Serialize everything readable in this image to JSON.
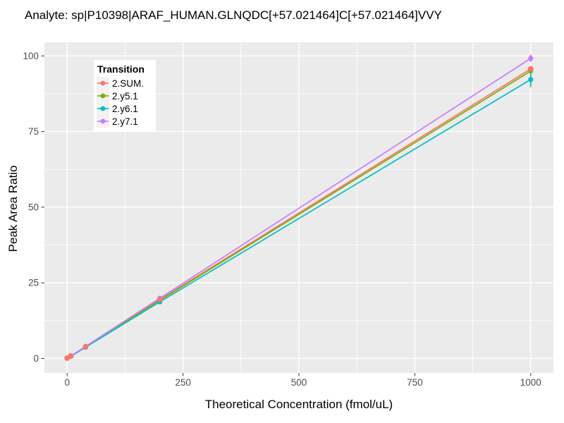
{
  "title": "Analyte: sp|P10398|ARAF_HUMAN.GLNQDC[+57.021464]C[+57.021464]VVY",
  "legend": {
    "title": "Transition",
    "items": [
      {
        "label": "2.SUM.",
        "color": "#F8766D"
      },
      {
        "label": "2.y5.1",
        "color": "#7CAE00"
      },
      {
        "label": "2.y6.1",
        "color": "#00BFC4"
      },
      {
        "label": "2.y7.1",
        "color": "#C77CFF"
      }
    ]
  },
  "colors": {
    "panel_bg": "#EBEBEB",
    "grid": "#FFFFFF",
    "tick": "#333333",
    "tick_label": "#4D4D4D",
    "legend_key_bg": "#F2F2F2"
  },
  "chart_data": {
    "type": "line",
    "title": "Analyte: sp|P10398|ARAF_HUMAN.GLNQDC[+57.021464]C[+57.021464]VVY",
    "xlabel": "Theoretical Concentration (fmol/uL)",
    "ylabel": "Peak Area Ratio",
    "x": [
      0,
      8,
      40,
      200,
      1000
    ],
    "series": [
      {
        "name": "2.SUM.",
        "color": "#F8766D",
        "values": [
          0.1,
          0.8,
          3.9,
          19.5,
          95.7
        ],
        "error_bars": [
          null,
          null,
          null,
          null,
          null
        ]
      },
      {
        "name": "2.y5.1",
        "color": "#7CAE00",
        "values": [
          0.1,
          0.8,
          3.8,
          19.2,
          95.0
        ],
        "error_bars": [
          null,
          null,
          null,
          null,
          null
        ]
      },
      {
        "name": "2.y6.1",
        "color": "#00BFC4",
        "values": [
          0.1,
          0.7,
          3.7,
          18.7,
          92.2
        ],
        "error_bars": [
          null,
          null,
          null,
          null,
          2.5
        ]
      },
      {
        "name": "2.y7.1",
        "color": "#C77CFF",
        "values": [
          0.1,
          0.8,
          4.0,
          19.9,
          99.2
        ],
        "error_bars": [
          null,
          null,
          null,
          null,
          1.2
        ]
      }
    ],
    "x_ticks": [
      0,
      250,
      500,
      750,
      1000
    ],
    "x_minor_ticks": [
      125,
      375,
      625,
      875
    ],
    "y_ticks": [
      0,
      25,
      50,
      75,
      100
    ],
    "y_minor_ticks": [
      12.5,
      37.5,
      62.5,
      87.5
    ],
    "xlim": [
      -49,
      1049
    ],
    "ylim": [
      -4.8,
      104.5
    ],
    "grid": true,
    "legend_position": "inside-top-left"
  }
}
